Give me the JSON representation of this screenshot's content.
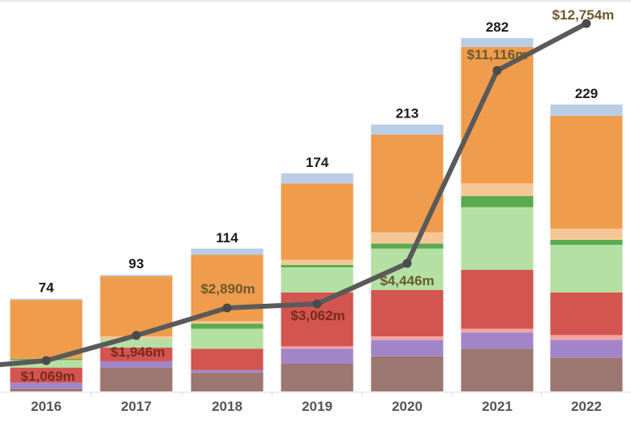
{
  "chart_data": {
    "type": "bar",
    "stacked": true,
    "title": "",
    "xlabel": "",
    "ylabel": "",
    "categories": [
      "2016",
      "2017",
      "2018",
      "2019",
      "2020",
      "2021",
      "2022"
    ],
    "totals": [
      74,
      93,
      114,
      174,
      213,
      282,
      229
    ],
    "ylim": [
      0,
      300
    ],
    "grid": false,
    "legend": "none",
    "series": [
      {
        "name": "Segment 1 (brown)",
        "color": "#9c7670",
        "values": [
          2,
          19,
          15,
          22,
          28,
          34,
          27
        ]
      },
      {
        "name": "Segment 2 (purple)",
        "color": "#a285c8",
        "values": [
          5,
          5,
          2,
          12,
          13,
          13,
          14
        ]
      },
      {
        "name": "Segment 3 (pink)",
        "color": "#f2a3a3",
        "values": [
          0,
          0,
          0,
          2,
          3,
          3,
          4
        ]
      },
      {
        "name": "Segment 4 (red)",
        "color": "#d35550",
        "values": [
          12,
          11,
          17,
          43,
          37,
          47,
          34
        ]
      },
      {
        "name": "Segment 5 (light green)",
        "color": "#b5e0a3",
        "values": [
          6,
          7,
          16,
          20,
          33,
          50,
          38
        ]
      },
      {
        "name": "Segment 6 (green)",
        "color": "#5aab4f",
        "values": [
          1,
          0,
          4,
          2,
          4,
          9,
          4
        ]
      },
      {
        "name": "Segment 7 (peach)",
        "color": "#f6c796",
        "values": [
          0,
          2,
          2,
          4,
          9,
          10,
          9
        ]
      },
      {
        "name": "Segment 8 (orange)",
        "color": "#ef9c4c",
        "values": [
          47,
          48,
          53,
          61,
          78,
          109,
          90
        ]
      },
      {
        "name": "Segment 9 (light blue)",
        "color": "#b9cde6",
        "values": [
          1,
          1,
          5,
          8,
          8,
          7,
          9
        ]
      }
    ],
    "line_series": {
      "name": "Value ($m)",
      "color": "#5a5a5a",
      "label_color": "#6b5a2e",
      "values": [
        1069,
        1946,
        2890,
        3062,
        4446,
        11116,
        12754
      ],
      "labels": [
        "$1,069m",
        "$1,946m",
        "$2,890m",
        "$3,062m",
        "$4,446m",
        "$11,116m",
        "$12,754m"
      ],
      "ylim": [
        0,
        13500
      ]
    }
  }
}
